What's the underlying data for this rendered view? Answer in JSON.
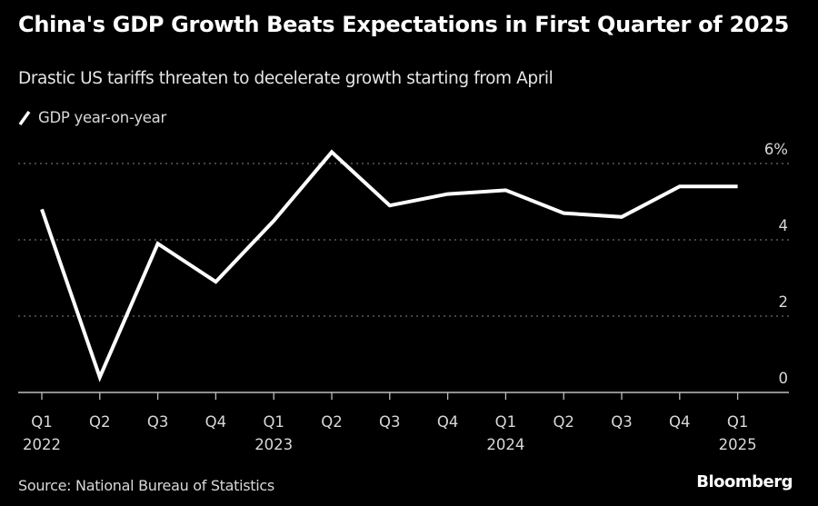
{
  "header": {
    "title": "China's GDP Growth Beats Expectations in First Quarter of 2025",
    "subtitle": "Drastic US tariffs threaten to decelerate growth starting from April"
  },
  "legend": {
    "items": [
      {
        "label": "GDP year-on-year",
        "color": "#ffffff",
        "icon": "line-swatch-icon"
      }
    ]
  },
  "footer": {
    "source": "Source: National Bureau of Statistics",
    "brand": "Bloomberg"
  },
  "chart_data": {
    "type": "line",
    "title": "China's GDP Growth Beats Expectations in First Quarter of 2025",
    "subtitle": "Drastic US tariffs threaten to decelerate growth starting from April",
    "xlabel": "",
    "ylabel": "",
    "categories": [
      "Q1 2022",
      "Q2 2022",
      "Q3 2022",
      "Q4 2022",
      "Q1 2023",
      "Q2 2023",
      "Q3 2023",
      "Q4 2023",
      "Q1 2024",
      "Q2 2024",
      "Q3 2024",
      "Q4 2024",
      "Q1 2025"
    ],
    "x_tick_labels": [
      {
        "quarter": "Q1",
        "year": "2022"
      },
      {
        "quarter": "Q2",
        "year": ""
      },
      {
        "quarter": "Q3",
        "year": ""
      },
      {
        "quarter": "Q4",
        "year": ""
      },
      {
        "quarter": "Q1",
        "year": "2023"
      },
      {
        "quarter": "Q2",
        "year": ""
      },
      {
        "quarter": "Q3",
        "year": ""
      },
      {
        "quarter": "Q4",
        "year": ""
      },
      {
        "quarter": "Q1",
        "year": "2024"
      },
      {
        "quarter": "Q2",
        "year": ""
      },
      {
        "quarter": "Q3",
        "year": ""
      },
      {
        "quarter": "Q4",
        "year": ""
      },
      {
        "quarter": "Q1",
        "year": "2025"
      }
    ],
    "series": [
      {
        "name": "GDP year-on-year",
        "color": "#ffffff",
        "values": [
          4.8,
          0.4,
          3.9,
          2.9,
          4.5,
          6.3,
          4.9,
          5.2,
          5.3,
          4.7,
          4.6,
          5.4,
          5.4
        ]
      }
    ],
    "ylim": [
      0,
      6.3
    ],
    "y_ticks": [
      0,
      2,
      4,
      6
    ],
    "y_tick_labels": [
      "0",
      "2",
      "4",
      "6%"
    ],
    "y_axis_side": "right",
    "grid": true,
    "grid_style": "dotted",
    "legend_position": "top-left",
    "background": "#000000",
    "grid_color": "#6e6e6e",
    "axis_color": "#bdbdbd"
  }
}
